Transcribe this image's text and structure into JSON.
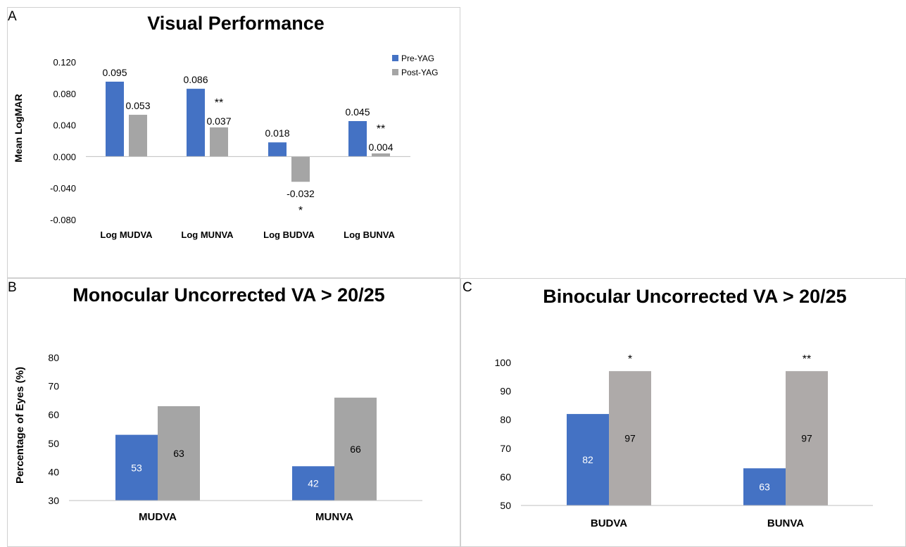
{
  "chart_data": [
    {
      "panel": "A",
      "type": "bar",
      "title": "Visual Performance",
      "ylabel": "Mean LogMAR",
      "xlabel": "",
      "ylim": [
        -0.08,
        0.12
      ],
      "yticks": [
        "0.120",
        "0.080",
        "0.040",
        "0.000",
        "-0.040",
        "-0.080"
      ],
      "ytick_values": [
        0.12,
        0.08,
        0.04,
        0.0,
        -0.04,
        -0.08
      ],
      "grid": false,
      "legend_position": "top-right",
      "categories": [
        "Log MUDVA",
        "Log MUNVA",
        "Log BUDVA",
        "Log BUNVA"
      ],
      "series": [
        {
          "name": "Pre-YAG",
          "color": "#4472c4",
          "values": [
            0.095,
            0.086,
            0.018,
            0.045
          ],
          "labels": [
            "0.095",
            "0.086",
            "0.018",
            "0.045"
          ]
        },
        {
          "name": "Post-YAG",
          "color": "#a5a5a5",
          "values": [
            0.053,
            0.037,
            -0.032,
            0.004
          ],
          "labels": [
            "0.053",
            "0.037",
            "-0.032",
            "0.004"
          ]
        }
      ],
      "annotations": [
        "",
        "**",
        "*",
        "**"
      ]
    },
    {
      "panel": "B",
      "type": "bar",
      "title": "Monocular Uncorrected VA > 20/25",
      "ylabel": "Percentage of Eyes (%)",
      "xlabel": "",
      "ylim": [
        30,
        80
      ],
      "yticks": [
        "80",
        "70",
        "60",
        "50",
        "40",
        "30"
      ],
      "ytick_values": [
        80,
        70,
        60,
        50,
        40,
        30
      ],
      "grid": false,
      "categories": [
        "MUDVA",
        "MUNVA"
      ],
      "series": [
        {
          "color": "#4472c4",
          "values": [
            53,
            42
          ],
          "labels": [
            "53",
            "42"
          ]
        },
        {
          "color": "#a5a5a5",
          "values": [
            63,
            66
          ],
          "labels": [
            "63",
            "66"
          ]
        }
      ],
      "annotations": [
        "",
        ""
      ]
    },
    {
      "panel": "C",
      "type": "bar",
      "title": "Binocular Uncorrected VA > 20/25",
      "ylabel": "",
      "xlabel": "",
      "ylim": [
        50,
        100
      ],
      "yticks": [
        "100",
        "90",
        "80",
        "70",
        "60",
        "50"
      ],
      "ytick_values": [
        100,
        90,
        80,
        70,
        60,
        50
      ],
      "grid": false,
      "categories": [
        "BUDVA",
        "BUNVA"
      ],
      "series": [
        {
          "color": "#4472c4",
          "values": [
            82,
            63
          ],
          "labels": [
            "82",
            "63"
          ]
        },
        {
          "color": "#aeaaa9",
          "values": [
            97,
            97
          ],
          "labels": [
            "97",
            "97"
          ]
        }
      ],
      "annotations": [
        "*",
        "**"
      ]
    }
  ]
}
